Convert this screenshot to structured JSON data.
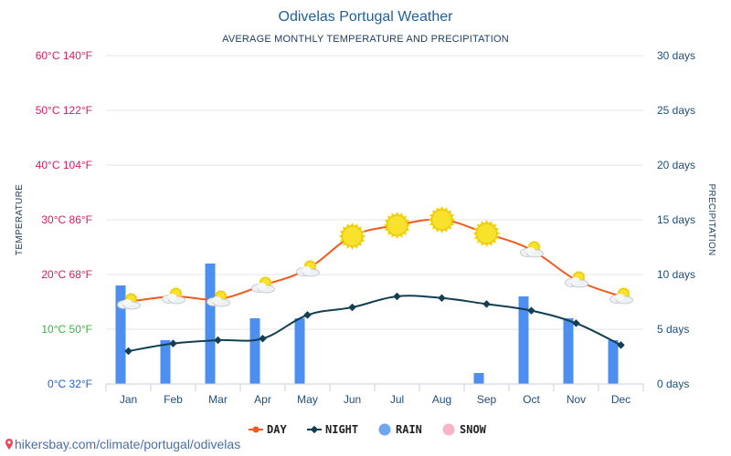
{
  "chart_data": {
    "type": "line+bar",
    "title": "Odivelas Portugal Weather",
    "subtitle": "AVERAGE MONTHLY TEMPERATURE AND PRECIPITATION",
    "ylabel_left": "TEMPERATURE",
    "ylabel_right": "PRECIPITATION",
    "categories": [
      "Jan",
      "Feb",
      "Mar",
      "Apr",
      "May",
      "Jun",
      "Jul",
      "Aug",
      "Sep",
      "Oct",
      "Nov",
      "Dec"
    ],
    "temp_ticks": [
      {
        "c": 60,
        "label": "60°C 140°F",
        "color": "#d81b60"
      },
      {
        "c": 50,
        "label": "50°C 122°F",
        "color": "#d81b60"
      },
      {
        "c": 40,
        "label": "40°C 104°F",
        "color": "#d81b60"
      },
      {
        "c": 30,
        "label": "30°C 86°F",
        "color": "#d81b60"
      },
      {
        "c": 20,
        "label": "20°C 68°F",
        "color": "#d81b60"
      },
      {
        "c": 10,
        "label": "10°C 50°F",
        "color": "#3cb43c"
      },
      {
        "c": 0,
        "label": "0°C 32°F",
        "color": "#1f5fd0"
      }
    ],
    "days_ticks": [
      {
        "d": 30,
        "label": "30 days"
      },
      {
        "d": 25,
        "label": "25 days"
      },
      {
        "d": 20,
        "label": "20 days"
      },
      {
        "d": 15,
        "label": "15 days"
      },
      {
        "d": 10,
        "label": "10 days"
      },
      {
        "d": 5,
        "label": "5 days"
      },
      {
        "d": 0,
        "label": "0 days"
      }
    ],
    "ylim_temp": [
      0,
      60
    ],
    "ylim_days": [
      0,
      30
    ],
    "series": [
      {
        "name": "DAY",
        "kind": "line",
        "color": "#f05a1a",
        "values": [
          15,
          16,
          15.5,
          18,
          21,
          27,
          29,
          30,
          27.5,
          24.5,
          19,
          16
        ]
      },
      {
        "name": "NIGHT",
        "kind": "line",
        "color": "#123f52",
        "values": [
          6,
          7.4,
          8,
          8.3,
          12.6,
          14,
          16,
          15.7,
          14.6,
          13.4,
          11.1,
          7.1
        ]
      },
      {
        "name": "RAIN",
        "kind": "bar",
        "unit": "days",
        "color": "#4d8ff0",
        "values": [
          9,
          4,
          11,
          6,
          6,
          0,
          0,
          0,
          1,
          8,
          6,
          4
        ]
      },
      {
        "name": "SNOW",
        "kind": "bar",
        "unit": "days",
        "color": "#f7b6c8",
        "values": [
          0,
          0,
          0,
          0,
          0,
          0,
          0,
          0,
          0,
          0,
          0,
          0
        ]
      }
    ],
    "weather_icons": [
      "partly-cloudy",
      "partly-cloudy",
      "partly-cloudy",
      "partly-cloudy",
      "partly-cloudy",
      "sun",
      "sun",
      "sun",
      "sun",
      "partly-cloudy",
      "partly-cloudy",
      "partly-cloudy"
    ],
    "legend": [
      {
        "label": "DAY",
        "color": "#f05a1a",
        "marker": "line-dot"
      },
      {
        "label": "NIGHT",
        "color": "#123f52",
        "marker": "line-diamond"
      },
      {
        "label": "RAIN",
        "color": "#6ea6f0",
        "marker": "dot"
      },
      {
        "label": "SNOW",
        "color": "#f7b6c8",
        "marker": "dot"
      }
    ]
  },
  "source_url": "hikersbay.com/climate/portugal/odivelas"
}
